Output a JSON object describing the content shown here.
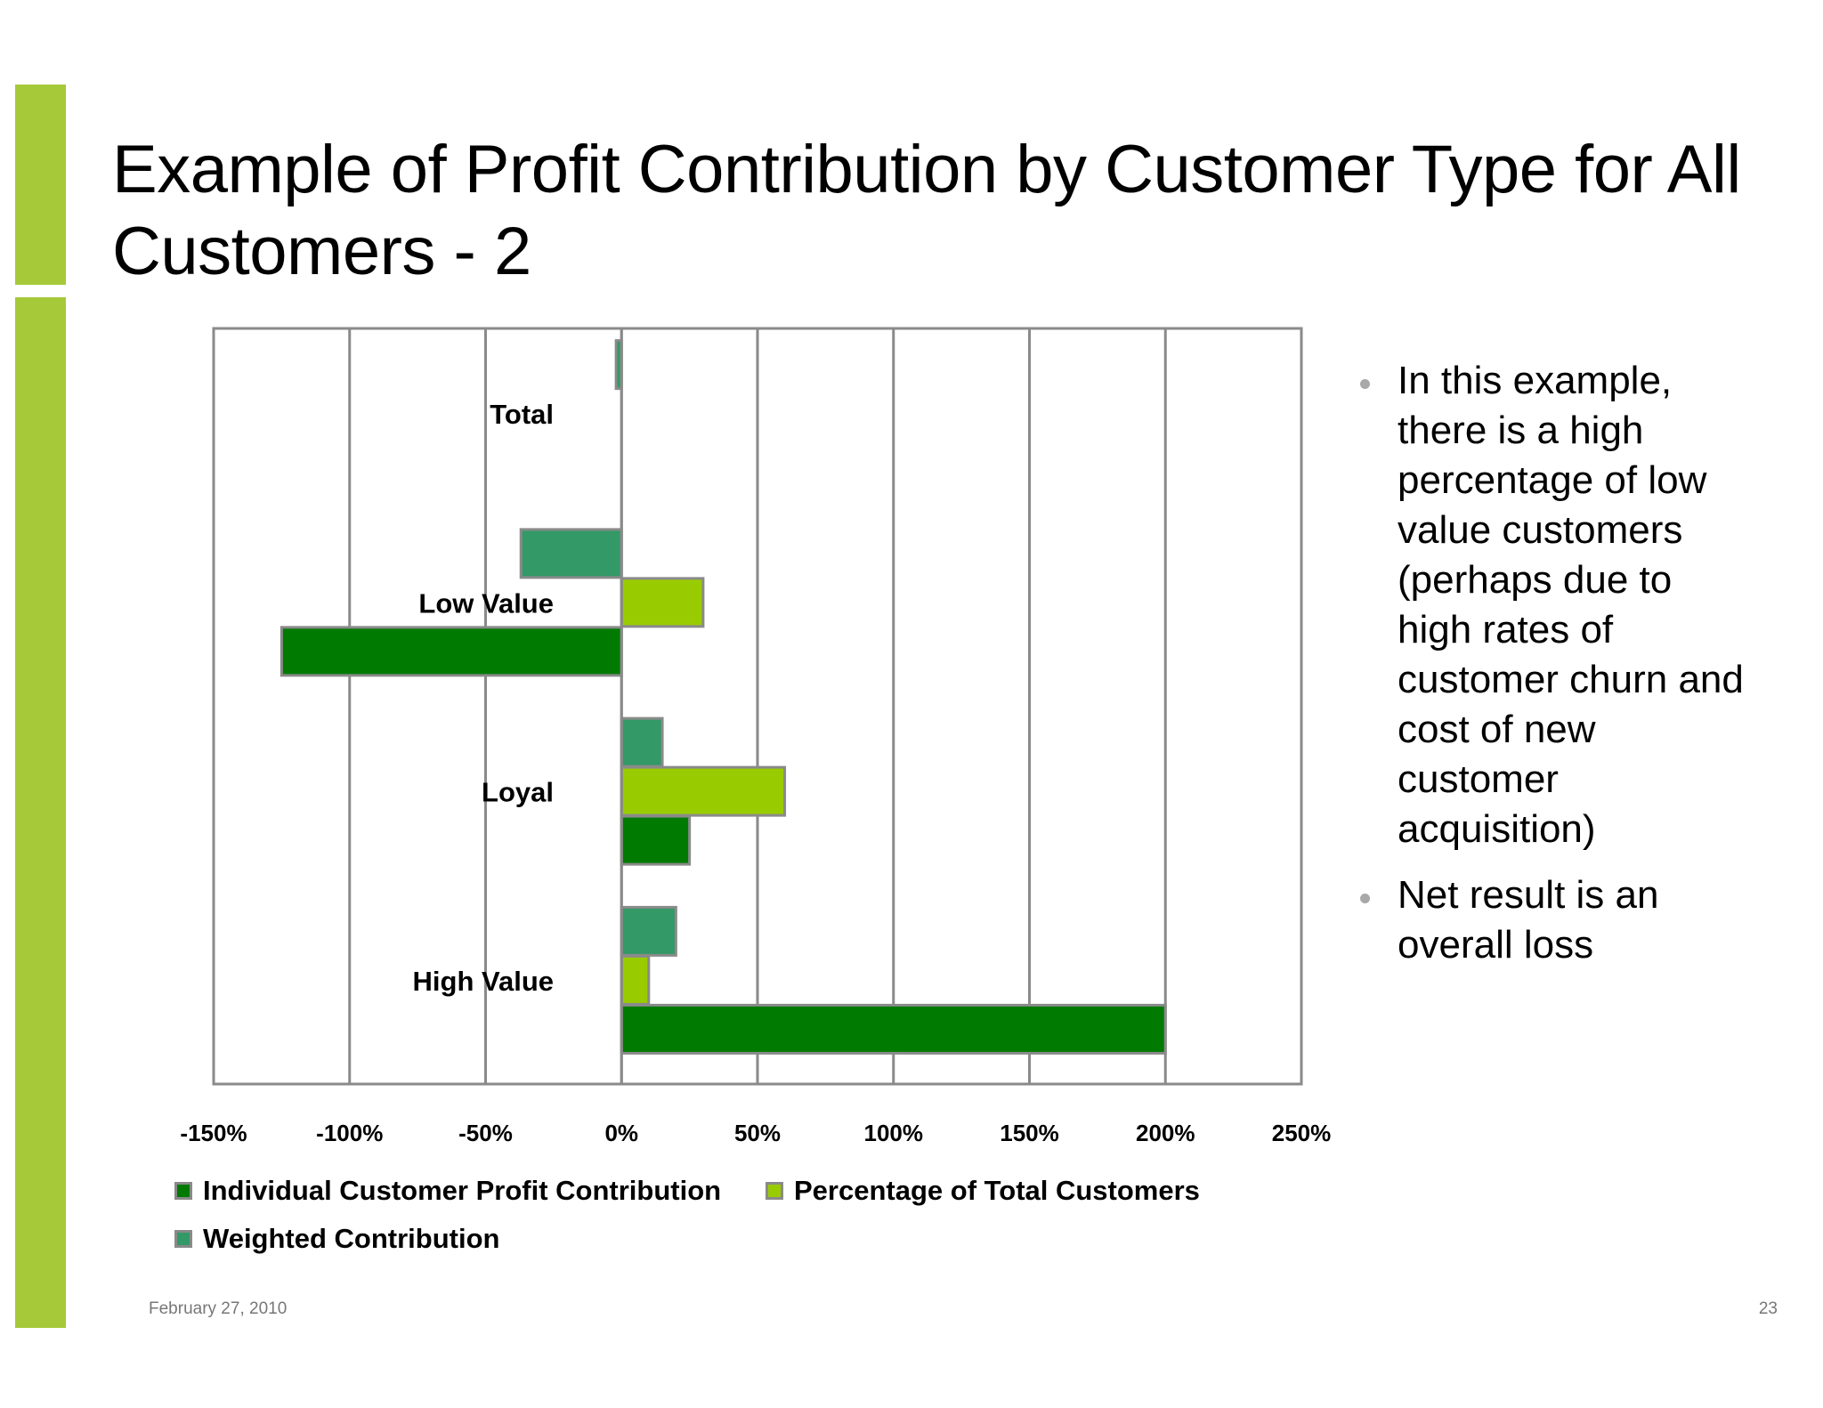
{
  "slide": {
    "title": "Example of Profit Contribution by Customer Type for All Customers - 2",
    "footer_date": "February 27, 2010",
    "page_number": "23",
    "accent_color": "#a6c93a"
  },
  "bullets": [
    "In this example, there is a high percentage of low value customers (perhaps due to high rates of customer churn and cost of new customer acquisition)",
    "Net result is an overall loss"
  ],
  "chart_data": {
    "type": "bar",
    "orientation": "horizontal",
    "categories": [
      "High Value",
      "Loyal",
      "Low Value",
      "Total"
    ],
    "series": [
      {
        "name": "Individual Customer Profit Contribution",
        "color": "#007a00",
        "values": [
          200,
          25,
          -125,
          0
        ]
      },
      {
        "name": "Percentage of Total Customers",
        "color": "#99cc00",
        "values": [
          10,
          60,
          30,
          0
        ]
      },
      {
        "name": "Weighted Contribution",
        "color": "#339966",
        "values": [
          20,
          15,
          -37,
          -2
        ]
      }
    ],
    "xlim": [
      -150,
      250
    ],
    "xticks": [
      -150,
      -100,
      -50,
      0,
      50,
      100,
      150,
      200,
      250
    ],
    "tick_labels": [
      "-150%",
      "-100%",
      "-50%",
      "0%",
      "50%",
      "100%",
      "150%",
      "200%",
      "250%"
    ],
    "grid": true,
    "legend_position": "bottom"
  }
}
